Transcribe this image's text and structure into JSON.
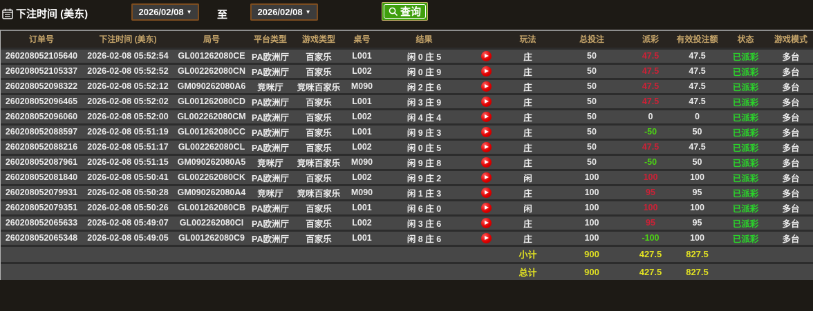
{
  "toolbar": {
    "date_label": "下注时间 (美东)",
    "date_from": "2026/02/08",
    "to_label": "至",
    "date_to": "2026/02/08",
    "query_label": "查询"
  },
  "table": {
    "columns": [
      "订单号",
      "下注时间 (美东)",
      "局号",
      "平台类型",
      "游戏类型",
      "桌号",
      "结果",
      "",
      "玩法",
      "总投注",
      "派彩",
      "有效投注额",
      "状态",
      "游戏模式"
    ],
    "rows": [
      {
        "order_no": "260208052105640",
        "bet_time": "2026-02-08 05:52:54",
        "round_no": "GL001262080CE",
        "platform": "PA欧洲厅",
        "game_type": "百家乐",
        "table_no": "L001",
        "result": "闲 0 庄 5",
        "play_type": "庄",
        "total_bet": "50",
        "payout": "47.5",
        "valid_bet": "47.5",
        "status": "已派彩",
        "game_mode": "多台"
      },
      {
        "order_no": "260208052105337",
        "bet_time": "2026-02-08 05:52:52",
        "round_no": "GL002262080CN",
        "platform": "PA欧洲厅",
        "game_type": "百家乐",
        "table_no": "L002",
        "result": "闲 0 庄 9",
        "play_type": "庄",
        "total_bet": "50",
        "payout": "47.5",
        "valid_bet": "47.5",
        "status": "已派彩",
        "game_mode": "多台"
      },
      {
        "order_no": "260208052098322",
        "bet_time": "2026-02-08 05:52:12",
        "round_no": "GM090262080A6",
        "platform": "竞咪厅",
        "game_type": "竞咪百家乐",
        "table_no": "M090",
        "result": "闲 2 庄 6",
        "play_type": "庄",
        "total_bet": "50",
        "payout": "47.5",
        "valid_bet": "47.5",
        "status": "已派彩",
        "game_mode": "多台"
      },
      {
        "order_no": "260208052096465",
        "bet_time": "2026-02-08 05:52:02",
        "round_no": "GL001262080CD",
        "platform": "PA欧洲厅",
        "game_type": "百家乐",
        "table_no": "L001",
        "result": "闲 3 庄 9",
        "play_type": "庄",
        "total_bet": "50",
        "payout": "47.5",
        "valid_bet": "47.5",
        "status": "已派彩",
        "game_mode": "多台"
      },
      {
        "order_no": "260208052096060",
        "bet_time": "2026-02-08 05:52:00",
        "round_no": "GL002262080CM",
        "platform": "PA欧洲厅",
        "game_type": "百家乐",
        "table_no": "L002",
        "result": "闲 4 庄 4",
        "play_type": "庄",
        "total_bet": "50",
        "payout": "0",
        "valid_bet": "0",
        "status": "已派彩",
        "game_mode": "多台"
      },
      {
        "order_no": "260208052088597",
        "bet_time": "2026-02-08 05:51:19",
        "round_no": "GL001262080CC",
        "platform": "PA欧洲厅",
        "game_type": "百家乐",
        "table_no": "L001",
        "result": "闲 9 庄 3",
        "play_type": "庄",
        "total_bet": "50",
        "payout": "-50",
        "valid_bet": "50",
        "status": "已派彩",
        "game_mode": "多台"
      },
      {
        "order_no": "260208052088216",
        "bet_time": "2026-02-08 05:51:17",
        "round_no": "GL002262080CL",
        "platform": "PA欧洲厅",
        "game_type": "百家乐",
        "table_no": "L002",
        "result": "闲 0 庄 5",
        "play_type": "庄",
        "total_bet": "50",
        "payout": "47.5",
        "valid_bet": "47.5",
        "status": "已派彩",
        "game_mode": "多台"
      },
      {
        "order_no": "260208052087961",
        "bet_time": "2026-02-08 05:51:15",
        "round_no": "GM090262080A5",
        "platform": "竞咪厅",
        "game_type": "竞咪百家乐",
        "table_no": "M090",
        "result": "闲 9 庄 8",
        "play_type": "庄",
        "total_bet": "50",
        "payout": "-50",
        "valid_bet": "50",
        "status": "已派彩",
        "game_mode": "多台"
      },
      {
        "order_no": "260208052081840",
        "bet_time": "2026-02-08 05:50:41",
        "round_no": "GL002262080CK",
        "platform": "PA欧洲厅",
        "game_type": "百家乐",
        "table_no": "L002",
        "result": "闲 9 庄 2",
        "play_type": "闲",
        "total_bet": "100",
        "payout": "100",
        "valid_bet": "100",
        "status": "已派彩",
        "game_mode": "多台"
      },
      {
        "order_no": "260208052079931",
        "bet_time": "2026-02-08 05:50:28",
        "round_no": "GM090262080A4",
        "platform": "竞咪厅",
        "game_type": "竞咪百家乐",
        "table_no": "M090",
        "result": "闲 1 庄 3",
        "play_type": "庄",
        "total_bet": "100",
        "payout": "95",
        "valid_bet": "95",
        "status": "已派彩",
        "game_mode": "多台"
      },
      {
        "order_no": "260208052079351",
        "bet_time": "2026-02-08 05:50:26",
        "round_no": "GL001262080CB",
        "platform": "PA欧洲厅",
        "game_type": "百家乐",
        "table_no": "L001",
        "result": "闲 6 庄 0",
        "play_type": "闲",
        "total_bet": "100",
        "payout": "100",
        "valid_bet": "100",
        "status": "已派彩",
        "game_mode": "多台"
      },
      {
        "order_no": "260208052065633",
        "bet_time": "2026-02-08 05:49:07",
        "round_no": "GL002262080CI",
        "platform": "PA欧洲厅",
        "game_type": "百家乐",
        "table_no": "L002",
        "result": "闲 3 庄 6",
        "play_type": "庄",
        "total_bet": "100",
        "payout": "95",
        "valid_bet": "95",
        "status": "已派彩",
        "game_mode": "多台"
      },
      {
        "order_no": "260208052065348",
        "bet_time": "2026-02-08 05:49:05",
        "round_no": "GL001262080C9",
        "platform": "PA欧洲厅",
        "game_type": "百家乐",
        "table_no": "L001",
        "result": "闲 8 庄 6",
        "play_type": "庄",
        "total_bet": "100",
        "payout": "-100",
        "valid_bet": "100",
        "status": "已派彩",
        "game_mode": "多台"
      }
    ],
    "footer": [
      {
        "label": "小计",
        "total_bet": "900",
        "payout": "427.5",
        "valid_bet": "827.5"
      },
      {
        "label": "总计",
        "total_bet": "900",
        "payout": "427.5",
        "valid_bet": "827.5"
      }
    ]
  },
  "colors": {
    "payout_win": "#cc2136",
    "payout_loss": "#4cd413",
    "status_paid": "#2ad42a",
    "summary_yellow": "#e2e222",
    "header_text": "#c6a56a",
    "query_button": "#3f9f0e",
    "date_border": "#7d4d1f"
  }
}
